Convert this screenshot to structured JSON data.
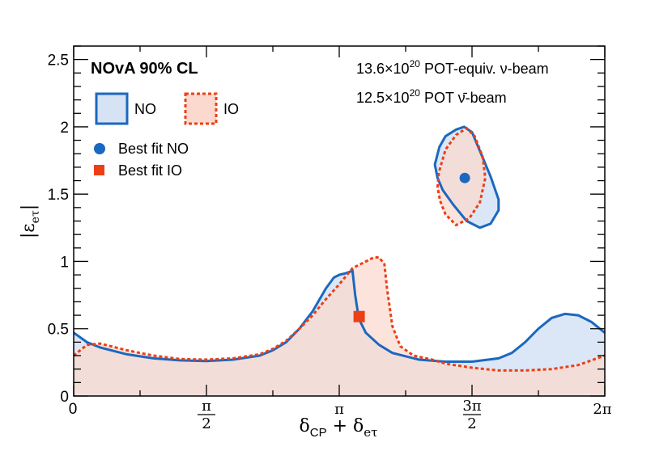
{
  "chart_data": {
    "type": "area",
    "title": "NOvA 90% CL",
    "xlabel": "δCP + δeτ",
    "ylabel": "|εeτ|",
    "xlim": [
      0,
      2
    ],
    "ylim": [
      0,
      2.6
    ],
    "x_units": "pi",
    "x_ticks": [
      {
        "value": 0,
        "label": "0",
        "type": "plain"
      },
      {
        "value": 0.5,
        "label": "π/2",
        "type": "frac",
        "num": "π",
        "den": "2"
      },
      {
        "value": 1,
        "label": "π",
        "type": "plain"
      },
      {
        "value": 1.5,
        "label": "3π/2",
        "type": "frac",
        "num": "3π",
        "den": "2"
      },
      {
        "value": 2,
        "label": "2π",
        "type": "plain"
      }
    ],
    "y_ticks": [
      {
        "value": 0,
        "label": "0"
      },
      {
        "value": 0.5,
        "label": "0.5"
      },
      {
        "value": 1,
        "label": "1"
      },
      {
        "value": 1.5,
        "label": "1.5"
      },
      {
        "value": 2,
        "label": "2"
      },
      {
        "value": 2.5,
        "label": "2.5"
      }
    ],
    "annotations": {
      "exposure_nu": "13.6×10^20 POT-equiv. ν-beam",
      "exposure_nubar": "12.5×10^20 POT ν̄-beam"
    },
    "legend": {
      "placement": "top-left",
      "entries": [
        {
          "name": "NO",
          "style": "solid-fill"
        },
        {
          "name": "IO",
          "style": "dashed-fill"
        },
        {
          "name": "Best fit NO",
          "style": "circle"
        },
        {
          "name": "Best fit IO",
          "style": "square"
        }
      ]
    },
    "colors": {
      "no_line": "#1b68c0",
      "no_fill": "#d5e3f4",
      "io_line": "#ec3f16",
      "io_fill": "#fbd9cf",
      "overlap_fill": "#d9c7ce"
    },
    "series": [
      {
        "name": "NO",
        "x": [
          0,
          0.05,
          0.1,
          0.2,
          0.3,
          0.4,
          0.5,
          0.6,
          0.7,
          0.75,
          0.8,
          0.85,
          0.9,
          0.95,
          0.98,
          1.0,
          1.02,
          1.05,
          1.06,
          1.07,
          1.08,
          1.1,
          1.15,
          1.2,
          1.3,
          1.4,
          1.5,
          1.6,
          1.65,
          1.7,
          1.75,
          1.8,
          1.85,
          1.9,
          1.95,
          2.0
        ],
        "y": [
          0.47,
          0.4,
          0.36,
          0.31,
          0.28,
          0.265,
          0.26,
          0.27,
          0.3,
          0.34,
          0.4,
          0.5,
          0.63,
          0.8,
          0.88,
          0.9,
          0.91,
          0.93,
          0.75,
          0.62,
          0.55,
          0.47,
          0.38,
          0.32,
          0.27,
          0.255,
          0.255,
          0.28,
          0.32,
          0.4,
          0.5,
          0.58,
          0.61,
          0.6,
          0.55,
          0.47
        ]
      },
      {
        "name": "IO",
        "x": [
          0,
          0.05,
          0.1,
          0.2,
          0.3,
          0.4,
          0.5,
          0.6,
          0.7,
          0.75,
          0.8,
          0.85,
          0.9,
          0.95,
          1.0,
          1.05,
          1.1,
          1.13,
          1.15,
          1.17,
          1.18,
          1.2,
          1.23,
          1.28,
          1.35,
          1.4,
          1.5,
          1.6,
          1.7,
          1.8,
          1.9,
          2.0
        ],
        "y": [
          0.3,
          0.38,
          0.39,
          0.34,
          0.3,
          0.275,
          0.27,
          0.28,
          0.31,
          0.35,
          0.41,
          0.5,
          0.6,
          0.72,
          0.83,
          0.95,
          1.0,
          1.03,
          1.03,
          0.98,
          0.8,
          0.52,
          0.37,
          0.3,
          0.27,
          0.24,
          0.21,
          0.19,
          0.19,
          0.2,
          0.23,
          0.3
        ]
      }
    ],
    "islands": [
      {
        "name": "NO",
        "points": [
          [
            1.377,
            1.85
          ],
          [
            1.4,
            1.93
          ],
          [
            1.44,
            1.98
          ],
          [
            1.47,
            2.0
          ],
          [
            1.5,
            1.96
          ],
          [
            1.53,
            1.82
          ],
          [
            1.57,
            1.63
          ],
          [
            1.6,
            1.46
          ],
          [
            1.6,
            1.38
          ],
          [
            1.57,
            1.28
          ],
          [
            1.53,
            1.25
          ],
          [
            1.48,
            1.3
          ],
          [
            1.43,
            1.42
          ],
          [
            1.39,
            1.53
          ],
          [
            1.37,
            1.62
          ],
          [
            1.36,
            1.72
          ]
        ]
      },
      {
        "name": "IO",
        "points": [
          [
            1.37,
            1.55
          ],
          [
            1.375,
            1.66
          ],
          [
            1.4,
            1.83
          ],
          [
            1.44,
            1.94
          ],
          [
            1.48,
            1.99
          ],
          [
            1.51,
            1.93
          ],
          [
            1.54,
            1.78
          ],
          [
            1.55,
            1.62
          ],
          [
            1.53,
            1.44
          ],
          [
            1.49,
            1.32
          ],
          [
            1.44,
            1.27
          ],
          [
            1.4,
            1.35
          ],
          [
            1.38,
            1.45
          ]
        ]
      }
    ],
    "best_fits": [
      {
        "name": "Best fit NO",
        "x": 1.473,
        "y": 1.62,
        "marker": "circle"
      },
      {
        "name": "Best fit IO",
        "x": 1.075,
        "y": 0.59,
        "marker": "square"
      }
    ]
  }
}
